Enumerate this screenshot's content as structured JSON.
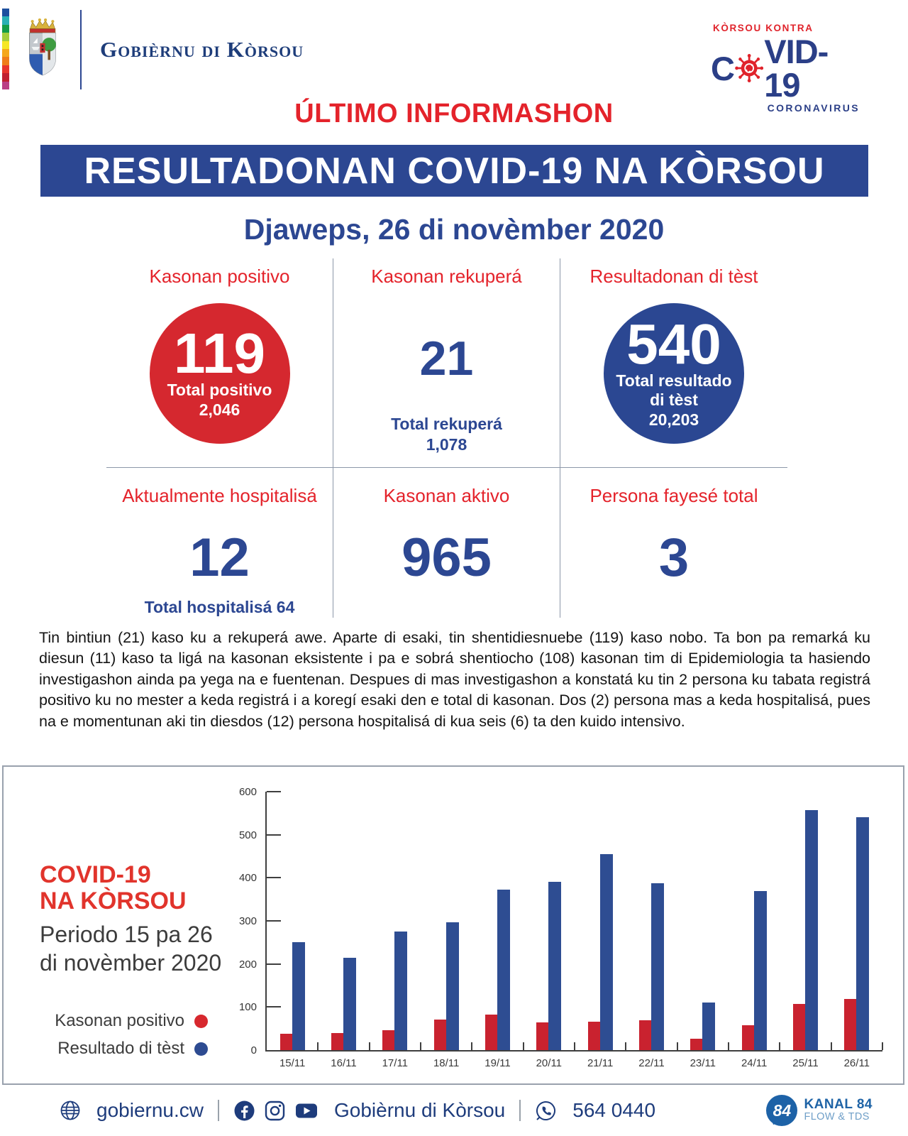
{
  "header": {
    "brand_name": "Gobièrnu di Kòrsou",
    "flag_colors": [
      "#1d4f9e",
      "#29b0b4",
      "#149b48",
      "#a4cd3c",
      "#f5e727",
      "#f5a81c",
      "#ef7d1a",
      "#e7342c",
      "#c01f30",
      "#ba3f85"
    ],
    "covid_logo": {
      "kicker": "KÒRSOU KONTRA",
      "main_c": "C",
      "main_rest": "VID-19",
      "sub": "CORONAVIRUS",
      "red": "#e0232b",
      "blue": "#2b3f87"
    }
  },
  "title": {
    "kicker": "ÚLTIMO INFORMASHON",
    "banner": "RESULTADONAN COVID-19 NA KÒRSOU",
    "date": "Djaweps, 26 di novèmber 2020",
    "banner_bg": "#2c4792",
    "kicker_color": "#e4232b"
  },
  "stats": {
    "top_row": [
      {
        "title": "Kasonan positivo",
        "value": "119",
        "subs": [
          "Total positivo",
          "2,046"
        ],
        "circle_color": "#d5282f"
      },
      {
        "title": "Kasonan rekuperá",
        "value": "21",
        "subs": [
          "Total rekuperá",
          "1,078"
        ]
      },
      {
        "title": "Resultadonan di tèst",
        "value": "540",
        "subs": [
          "Total resultado",
          "di tèst",
          "20,203"
        ],
        "circle_color": "#2b4792"
      }
    ],
    "bottom_row": [
      {
        "title": "Aktualmente hospitalisá",
        "value": "12",
        "sub": "Total hospitalisá 64"
      },
      {
        "title": "Kasonan aktivo",
        "value": "965"
      },
      {
        "title": "Persona fayesé total",
        "value": "3"
      }
    ]
  },
  "body_text": "Tin bintiun (21) kaso ku a rekuperá awe. Aparte di esaki, tin shentidiesnuebe (119) kaso nobo. Ta bon pa remarká ku diesun (11) kaso ta ligá na kasonan eksistente i pa e sobrá shentiocho (108) kasonan tim di Epidemiologia ta hasiendo investigashon ainda pa yega na e fuentenan. Despues di mas investigashon a konstatá ku tin 2 persona ku tabata registrá positivo ku no mester a keda registrá i a koregí esaki den e total di kasonan. Dos (2) persona mas a keda hospitalisá, pues na e momentunan aki tin diesdos (12) persona hospitalisá di kua seis (6) ta den kuido intensivo.",
  "chart": {
    "title_line1": "COVID-19",
    "title_line2": "NA KÒRSOU",
    "subtitle_line1": "Periodo 15 pa 26",
    "subtitle_line2": "di novèmber 2020",
    "legend": [
      {
        "label": "Kasonan positivo",
        "color": "#d7282e"
      },
      {
        "label": "Resultado di tèst",
        "color": "#2d4b91"
      }
    ]
  },
  "chart_data": {
    "type": "bar",
    "categories": [
      "15/11",
      "16/11",
      "17/11",
      "18/11",
      "19/11",
      "20/11",
      "21/11",
      "22/11",
      "23/11",
      "24/11",
      "25/11",
      "26/11"
    ],
    "series": [
      {
        "name": "Kasonan positivo",
        "color": "#c9222f",
        "values": [
          38,
          39,
          47,
          71,
          83,
          64,
          66,
          70,
          26,
          57,
          107,
          119
        ]
      },
      {
        "name": "Resultado di tèst",
        "color": "#2e4d92",
        "values": [
          250,
          215,
          275,
          296,
          373,
          391,
          455,
          388,
          111,
          369,
          557,
          540
        ]
      }
    ],
    "title": "COVID-19 NA KÒRSOU — Periodo 15 pa 26 di novèmber 2020",
    "xlabel": "",
    "ylabel": "",
    "ylim": [
      0,
      600
    ],
    "yticks": [
      0,
      100,
      200,
      300,
      400,
      500,
      600
    ],
    "grid": false,
    "legend_position": "left"
  },
  "footer": {
    "website": "gobiernu.cw",
    "account_name": "Gobièrnu di Kòrsou",
    "phone": "564 0440",
    "kanal": {
      "number": "84",
      "name": "KANAL 84",
      "tagline": "FLOW & TDS"
    },
    "text_color": "#1e3c7c"
  }
}
